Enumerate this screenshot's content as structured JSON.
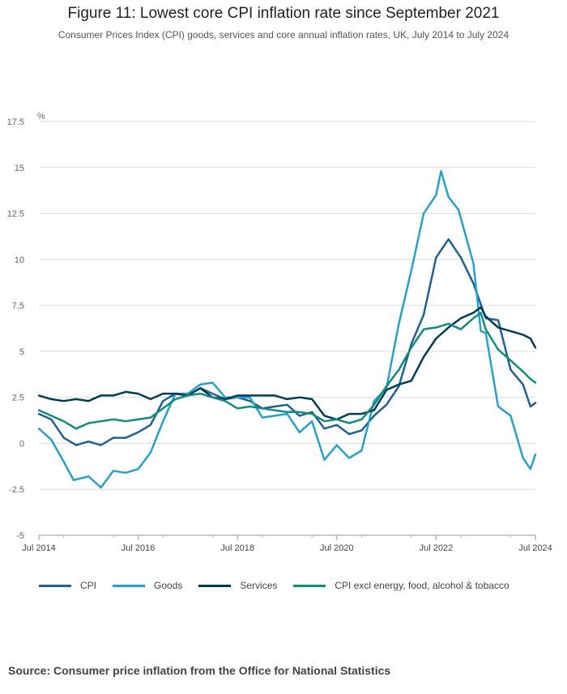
{
  "header": {
    "title": "Figure 11: Lowest core CPI inflation rate since September 2021",
    "subtitle": "Consumer Prices Index (CPI) goods, services and core annual inflation rates, UK, July 2014 to July 2024"
  },
  "source": "Source: Consumer price inflation from the Office for National Statistics",
  "chart_data": {
    "type": "line",
    "title": "Figure 11: Lowest core CPI inflation rate since September 2021",
    "ylabel": "%",
    "xlabel": "",
    "ylim": [
      -5,
      17.5
    ],
    "yticks": [
      -5,
      -2.5,
      0,
      2.5,
      5,
      7.5,
      10,
      12.5,
      15,
      17.5
    ],
    "ytick_labels": [
      "-5",
      "-2.5",
      "0",
      "2.5",
      "5",
      "7.5",
      "10",
      "12.5",
      "15",
      "17.5"
    ],
    "xlim": [
      2014.5,
      2024.5
    ],
    "xticks": [
      2014.5,
      2016.5,
      2018.5,
      2020.5,
      2022.5,
      2024.5
    ],
    "xtick_labels": [
      "Jul 2014",
      "Jul 2016",
      "Jul 2018",
      "Jul 2020",
      "Jul 2022",
      "Jul 2024"
    ],
    "grid": "horizontal",
    "legend_position": "bottom",
    "series": [
      {
        "name": "CPI",
        "color": "#206095",
        "points": [
          [
            2014.5,
            1.6
          ],
          [
            2014.75,
            1.3
          ],
          [
            2015.0,
            0.3
          ],
          [
            2015.25,
            -0.1
          ],
          [
            2015.5,
            0.1
          ],
          [
            2015.75,
            -0.1
          ],
          [
            2016.0,
            0.3
          ],
          [
            2016.25,
            0.3
          ],
          [
            2016.5,
            0.6
          ],
          [
            2016.75,
            1.0
          ],
          [
            2017.0,
            2.3
          ],
          [
            2017.25,
            2.7
          ],
          [
            2017.5,
            2.6
          ],
          [
            2017.75,
            3.0
          ],
          [
            2018.0,
            2.7
          ],
          [
            2018.25,
            2.4
          ],
          [
            2018.5,
            2.5
          ],
          [
            2018.75,
            2.3
          ],
          [
            2019.0,
            1.9
          ],
          [
            2019.25,
            2.0
          ],
          [
            2019.5,
            2.1
          ],
          [
            2019.75,
            1.5
          ],
          [
            2020.0,
            1.7
          ],
          [
            2020.25,
            0.8
          ],
          [
            2020.5,
            1.0
          ],
          [
            2020.75,
            0.5
          ],
          [
            2021.0,
            0.7
          ],
          [
            2021.25,
            1.5
          ],
          [
            2021.5,
            2.1
          ],
          [
            2021.75,
            3.1
          ],
          [
            2022.0,
            5.4
          ],
          [
            2022.25,
            7.0
          ],
          [
            2022.5,
            10.1
          ],
          [
            2022.75,
            11.1
          ],
          [
            2023.0,
            10.1
          ],
          [
            2023.25,
            8.7
          ],
          [
            2023.5,
            6.8
          ],
          [
            2023.75,
            6.7
          ],
          [
            2024.0,
            4.0
          ],
          [
            2024.25,
            3.2
          ],
          [
            2024.4,
            2.0
          ],
          [
            2024.5,
            2.2
          ]
        ]
      },
      {
        "name": "Goods",
        "color": "#27a0cc",
        "points": [
          [
            2014.5,
            0.8
          ],
          [
            2014.75,
            0.2
          ],
          [
            2015.0,
            -1.0
          ],
          [
            2015.2,
            -2.0
          ],
          [
            2015.5,
            -1.8
          ],
          [
            2015.75,
            -2.4
          ],
          [
            2016.0,
            -1.5
          ],
          [
            2016.25,
            -1.6
          ],
          [
            2016.5,
            -1.4
          ],
          [
            2016.75,
            -0.5
          ],
          [
            2017.0,
            1.2
          ],
          [
            2017.25,
            2.7
          ],
          [
            2017.5,
            2.7
          ],
          [
            2017.75,
            3.2
          ],
          [
            2018.0,
            3.3
          ],
          [
            2018.25,
            2.5
          ],
          [
            2018.5,
            2.5
          ],
          [
            2018.75,
            2.5
          ],
          [
            2019.0,
            1.4
          ],
          [
            2019.25,
            1.5
          ],
          [
            2019.5,
            1.6
          ],
          [
            2019.75,
            0.6
          ],
          [
            2020.0,
            1.2
          ],
          [
            2020.25,
            -0.9
          ],
          [
            2020.5,
            -0.1
          ],
          [
            2020.75,
            -0.8
          ],
          [
            2021.0,
            -0.4
          ],
          [
            2021.25,
            2.3
          ],
          [
            2021.5,
            3.0
          ],
          [
            2021.75,
            6.5
          ],
          [
            2022.0,
            9.4
          ],
          [
            2022.25,
            12.5
          ],
          [
            2022.5,
            13.5
          ],
          [
            2022.6,
            14.8
          ],
          [
            2022.75,
            13.4
          ],
          [
            2022.95,
            12.7
          ],
          [
            2023.25,
            9.8
          ],
          [
            2023.4,
            6.1
          ],
          [
            2023.5,
            6.0
          ],
          [
            2023.75,
            2.0
          ],
          [
            2024.0,
            1.5
          ],
          [
            2024.25,
            -0.8
          ],
          [
            2024.4,
            -1.4
          ],
          [
            2024.5,
            -0.6
          ]
        ]
      },
      {
        "name": "Services",
        "color": "#003c57",
        "points": [
          [
            2014.5,
            2.6
          ],
          [
            2014.75,
            2.4
          ],
          [
            2015.0,
            2.3
          ],
          [
            2015.25,
            2.4
          ],
          [
            2015.5,
            2.3
          ],
          [
            2015.75,
            2.6
          ],
          [
            2016.0,
            2.6
          ],
          [
            2016.25,
            2.8
          ],
          [
            2016.5,
            2.7
          ],
          [
            2016.75,
            2.4
          ],
          [
            2017.0,
            2.7
          ],
          [
            2017.25,
            2.7
          ],
          [
            2017.5,
            2.6
          ],
          [
            2017.75,
            3.0
          ],
          [
            2018.0,
            2.5
          ],
          [
            2018.25,
            2.4
          ],
          [
            2018.5,
            2.6
          ],
          [
            2018.75,
            2.6
          ],
          [
            2019.0,
            2.6
          ],
          [
            2019.25,
            2.6
          ],
          [
            2019.5,
            2.4
          ],
          [
            2019.75,
            2.5
          ],
          [
            2020.0,
            2.4
          ],
          [
            2020.25,
            1.5
          ],
          [
            2020.5,
            1.3
          ],
          [
            2020.75,
            1.6
          ],
          [
            2021.0,
            1.6
          ],
          [
            2021.25,
            1.8
          ],
          [
            2021.5,
            2.9
          ],
          [
            2021.75,
            3.2
          ],
          [
            2022.0,
            3.4
          ],
          [
            2022.25,
            4.7
          ],
          [
            2022.5,
            5.7
          ],
          [
            2022.75,
            6.3
          ],
          [
            2023.0,
            6.8
          ],
          [
            2023.25,
            7.1
          ],
          [
            2023.4,
            7.4
          ],
          [
            2023.5,
            6.9
          ],
          [
            2023.75,
            6.3
          ],
          [
            2024.0,
            6.1
          ],
          [
            2024.25,
            5.9
          ],
          [
            2024.4,
            5.7
          ],
          [
            2024.5,
            5.2
          ]
        ]
      },
      {
        "name": "CPI excl energy, food, alcohol & tobacco",
        "color": "#118c7b",
        "points": [
          [
            2014.5,
            1.8
          ],
          [
            2014.75,
            1.5
          ],
          [
            2015.0,
            1.2
          ],
          [
            2015.25,
            0.8
          ],
          [
            2015.5,
            1.1
          ],
          [
            2015.75,
            1.2
          ],
          [
            2016.0,
            1.3
          ],
          [
            2016.25,
            1.2
          ],
          [
            2016.5,
            1.3
          ],
          [
            2016.75,
            1.4
          ],
          [
            2017.0,
            1.9
          ],
          [
            2017.25,
            2.4
          ],
          [
            2017.5,
            2.6
          ],
          [
            2017.75,
            2.7
          ],
          [
            2018.0,
            2.5
          ],
          [
            2018.25,
            2.3
          ],
          [
            2018.5,
            1.9
          ],
          [
            2018.75,
            2.0
          ],
          [
            2019.0,
            1.9
          ],
          [
            2019.25,
            1.8
          ],
          [
            2019.5,
            1.7
          ],
          [
            2019.75,
            1.7
          ],
          [
            2020.0,
            1.6
          ],
          [
            2020.25,
            1.2
          ],
          [
            2020.5,
            1.3
          ],
          [
            2020.75,
            1.1
          ],
          [
            2021.0,
            1.3
          ],
          [
            2021.25,
            2.1
          ],
          [
            2021.5,
            3.1
          ],
          [
            2021.75,
            4.0
          ],
          [
            2022.0,
            5.2
          ],
          [
            2022.25,
            6.2
          ],
          [
            2022.5,
            6.3
          ],
          [
            2022.75,
            6.5
          ],
          [
            2023.0,
            6.2
          ],
          [
            2023.25,
            6.8
          ],
          [
            2023.4,
            7.1
          ],
          [
            2023.5,
            6.2
          ],
          [
            2023.75,
            5.1
          ],
          [
            2024.0,
            4.5
          ],
          [
            2024.25,
            3.9
          ],
          [
            2024.4,
            3.5
          ],
          [
            2024.5,
            3.3
          ]
        ]
      }
    ]
  }
}
